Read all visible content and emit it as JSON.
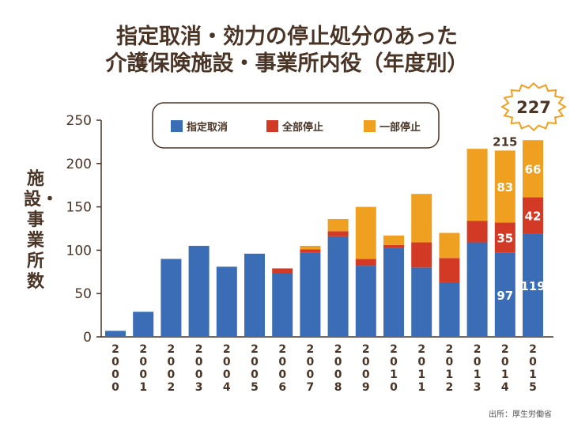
{
  "title_line1": "指定取消・効力の停止処分のあった",
  "title_line2": "介護保険施設・事業所内役（年度別）",
  "source": "出所：厚生労働省",
  "badge_total": "227",
  "chart_data": {
    "type": "bar",
    "stacked": true,
    "title": "指定取消・効力の停止処分のあった介護保険施設・事業所内役（年度別）",
    "ylabel": "施設・事業所数",
    "xlabel": "",
    "ylim": [
      0,
      250
    ],
    "yticks": [
      0,
      50,
      100,
      150,
      200,
      250
    ],
    "grid": false,
    "legend_position": "top",
    "categories": [
      "2000",
      "2001",
      "2002",
      "2003",
      "2004",
      "2005",
      "2006",
      "2007",
      "2008",
      "2009",
      "2010",
      "2011",
      "2012",
      "2013",
      "2014",
      "2015"
    ],
    "series": [
      {
        "name": "指定取消",
        "color": "#3a6db5",
        "values": [
          7,
          29,
          90,
          105,
          81,
          96,
          73,
          97,
          116,
          82,
          103,
          80,
          63,
          109,
          97,
          119
        ]
      },
      {
        "name": "全部停止",
        "color": "#d23a26",
        "values": [
          0,
          0,
          0,
          0,
          0,
          0,
          6,
          4,
          6,
          8,
          3,
          29,
          28,
          25,
          35,
          42
        ]
      },
      {
        "name": "一部停止",
        "color": "#f0a020",
        "values": [
          0,
          0,
          0,
          0,
          0,
          0,
          0,
          4,
          14,
          60,
          11,
          56,
          29,
          83,
          83,
          66
        ]
      }
    ],
    "data_labels": [
      {
        "category": "2014",
        "series": "指定取消",
        "text": "97"
      },
      {
        "category": "2014",
        "series": "全部停止",
        "text": "35"
      },
      {
        "category": "2014",
        "series": "一部停止",
        "text": "83"
      },
      {
        "category": "2014",
        "series": "total",
        "text": "215"
      },
      {
        "category": "2015",
        "series": "指定取消",
        "text": "119"
      },
      {
        "category": "2015",
        "series": "全部停止",
        "text": "42"
      },
      {
        "category": "2015",
        "series": "一部停止",
        "text": "66"
      }
    ]
  }
}
